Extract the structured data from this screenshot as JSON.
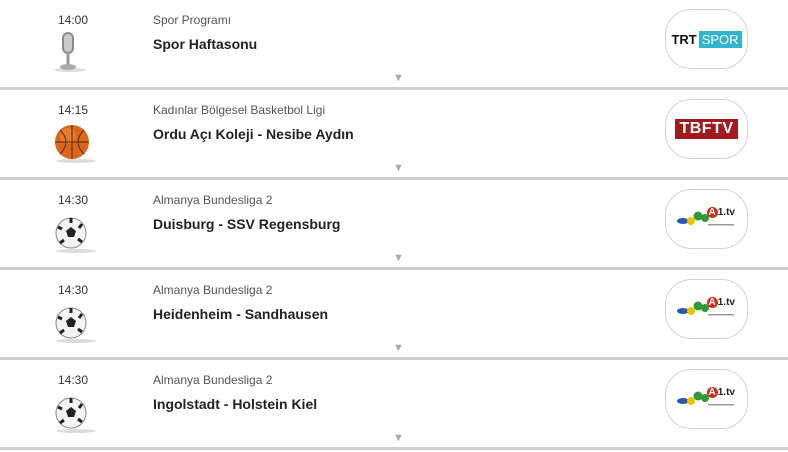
{
  "colors": {
    "separator": "#cfcfcf",
    "trt_spor": "#31b4d0",
    "tbftv": "#a01a1e"
  },
  "rows": [
    {
      "time": "14:00",
      "icon": "microphone-icon",
      "category": "Spor Programı",
      "title": "Spor Haftasonu",
      "channel": "TRT SPOR",
      "channel_parts": [
        "TRT",
        "SPOR"
      ]
    },
    {
      "time": "14:15",
      "icon": "basketball-icon",
      "category": "Kadınlar Bölgesel Basketbol Ligi",
      "title": "Ordu Açı Koleji - Nesibe Aydın",
      "channel": "TBFTV"
    },
    {
      "time": "14:30",
      "icon": "football-icon",
      "category": "Almanya Bundesliga 2",
      "title": "Duisburg - SSV Regensburg",
      "channel": "A1.tv"
    },
    {
      "time": "14:30",
      "icon": "football-icon",
      "category": "Almanya Bundesliga 2",
      "title": "Heidenheim - Sandhausen",
      "channel": "A1.tv"
    },
    {
      "time": "14:30",
      "icon": "football-icon",
      "category": "Almanya Bundesliga 2",
      "title": "Ingolstadt - Holstein Kiel",
      "channel": "A1.tv"
    }
  ],
  "expand_glyph": "▼"
}
